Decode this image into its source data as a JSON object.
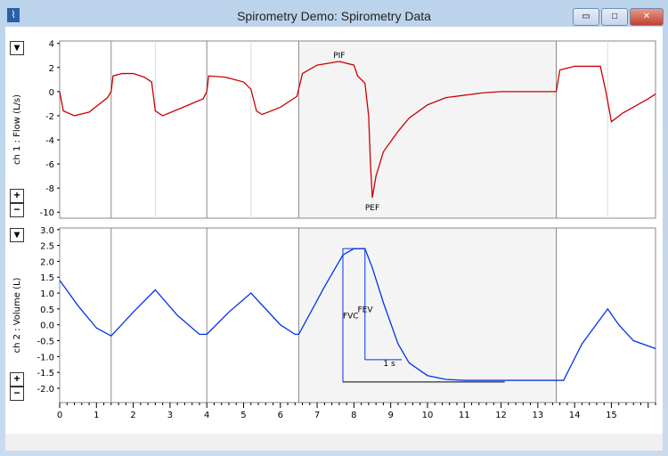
{
  "window": {
    "title": "Spirometry Demo: Spirometry Data",
    "minimize": "▭",
    "maximize": "□",
    "close": "✕"
  },
  "colors": {
    "flow": "#cc0000",
    "volume": "#0033ee",
    "selection": "#f4f4f4"
  },
  "chart_data": [
    {
      "type": "line",
      "ylabel": "ch 1 : Flow (L/s)",
      "ylim": [
        -10.5,
        4.2
      ],
      "xlim": [
        0,
        16.2
      ],
      "yticks": [
        4,
        2,
        0,
        -2,
        -4,
        -6,
        -8,
        -10
      ],
      "markers": [
        1.4,
        4.0,
        6.5,
        13.5
      ],
      "minor_markers": [
        2.6,
        5.2,
        14.9
      ],
      "selection": [
        6.5,
        13.5
      ],
      "x": [
        0,
        0.1,
        0.4,
        0.8,
        1.3,
        1.4,
        1.45,
        1.7,
        2.0,
        2.3,
        2.5,
        2.6,
        2.8,
        3.2,
        3.9,
        4.0,
        4.05,
        4.5,
        5.0,
        5.2,
        5.35,
        5.5,
        6.0,
        6.45,
        6.6,
        7.0,
        7.6,
        8.0,
        8.1,
        8.3,
        8.4,
        8.45,
        8.5,
        8.6,
        8.8,
        9.2,
        9.5,
        10,
        10.5,
        11.5,
        12,
        13.5,
        13.6,
        14,
        14.7,
        14.85,
        15,
        15.3,
        16,
        16.2
      ],
      "y": [
        0,
        -1.6,
        -2.0,
        -1.7,
        -0.5,
        0,
        1.3,
        1.5,
        1.5,
        1.2,
        0.8,
        -1.6,
        -2.0,
        -1.5,
        -0.6,
        0,
        1.3,
        1.2,
        0.8,
        0.2,
        -1.6,
        -1.9,
        -1.3,
        -0.4,
        1.5,
        2.2,
        2.5,
        2.2,
        1.3,
        0.7,
        -2,
        -6,
        -8.8,
        -7,
        -5,
        -3.3,
        -2.2,
        -1.1,
        -0.5,
        -0.1,
        0,
        0,
        1.8,
        2.1,
        2.1,
        0,
        -2.5,
        -1.8,
        -0.6,
        -0.2
      ],
      "annotations": [
        {
          "text": "PIF",
          "x": 7.6,
          "y": 2.5
        },
        {
          "text": "PEF",
          "x": 8.5,
          "y": -8.8
        }
      ]
    },
    {
      "type": "line",
      "ylabel": "ch 2 : Volume (L)",
      "ylim": [
        -2.45,
        3.05
      ],
      "xlim": [
        0,
        16.2
      ],
      "yticks": [
        "3.0",
        "2.5",
        "2.0",
        "1.5",
        "1.0",
        "0.5",
        "0.0",
        "-0.5",
        "-1.0",
        "-1.5",
        "-2.0"
      ],
      "xticks": [
        0,
        1,
        2,
        3,
        4,
        5,
        6,
        7,
        8,
        9,
        10,
        11,
        12,
        13,
        14,
        15
      ],
      "markers": [
        1.4,
        4.0,
        6.5,
        13.5
      ],
      "selection": [
        6.5,
        13.5
      ],
      "x": [
        0,
        0.5,
        1.0,
        1.4,
        2.0,
        2.6,
        3.2,
        3.8,
        4.0,
        4.6,
        5.2,
        5.6,
        6.0,
        6.4,
        6.5,
        7.2,
        7.7,
        8.0,
        8.3,
        8.5,
        8.8,
        9.2,
        9.5,
        10,
        10.5,
        11,
        13.7,
        14.2,
        14.9,
        15.2,
        15.6,
        16.2
      ],
      "y": [
        1.4,
        0.6,
        -0.1,
        -0.35,
        0.4,
        1.1,
        0.3,
        -0.3,
        -0.3,
        0.4,
        1.0,
        0.5,
        0.0,
        -0.3,
        -0.3,
        1.2,
        2.2,
        2.4,
        2.4,
        1.8,
        0.7,
        -0.6,
        -1.2,
        -1.6,
        -1.72,
        -1.75,
        -1.75,
        -0.6,
        0.5,
        0,
        -0.5,
        -0.75
      ],
      "annotations": [
        {
          "text": "FVC",
          "x": 7.7,
          "y": 0.2
        },
        {
          "text": "FEV",
          "x": 8.1,
          "y": 0.4
        },
        {
          "text": "1 s",
          "x": 8.8,
          "y": -1.3
        }
      ],
      "fvc": {
        "t": 7.7,
        "top": 2.4,
        "bottom": -1.8,
        "end": 12.1
      },
      "fev": {
        "t": 8.3,
        "top": 2.4,
        "bottom": -1.1,
        "end": 9.3
      }
    }
  ],
  "controls": {
    "menu": "▾",
    "zoom_in": "+",
    "zoom_out": "−"
  }
}
